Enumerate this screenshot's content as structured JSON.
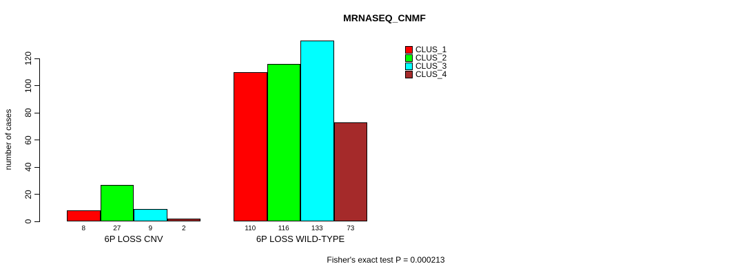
{
  "chart_data": {
    "type": "bar",
    "title": "MRNASEQ_CNMF",
    "ylabel": "number of cases",
    "xlabel": "",
    "ylim": [
      0,
      120
    ],
    "yticks": [
      0,
      20,
      40,
      60,
      80,
      100,
      120
    ],
    "grid": false,
    "legend_position": "top-right",
    "categories": [
      "6P LOSS CNV",
      "6P LOSS WILD-TYPE"
    ],
    "series": [
      {
        "name": "CLUS_1",
        "color": "#FF0000",
        "values": [
          8,
          110
        ]
      },
      {
        "name": "CLUS_2",
        "color": "#00FF00",
        "values": [
          27,
          116
        ]
      },
      {
        "name": "CLUS_3",
        "color": "#00FFFF",
        "values": [
          9,
          133
        ]
      },
      {
        "name": "CLUS_4",
        "color": "#A52A2A",
        "values": [
          2,
          73
        ]
      }
    ],
    "bar_value_labels": [
      [
        "8",
        "27",
        "9",
        "2"
      ],
      [
        "110",
        "116",
        "133",
        "73"
      ]
    ],
    "annotation": "Fisher's exact test P = 0.000213"
  }
}
